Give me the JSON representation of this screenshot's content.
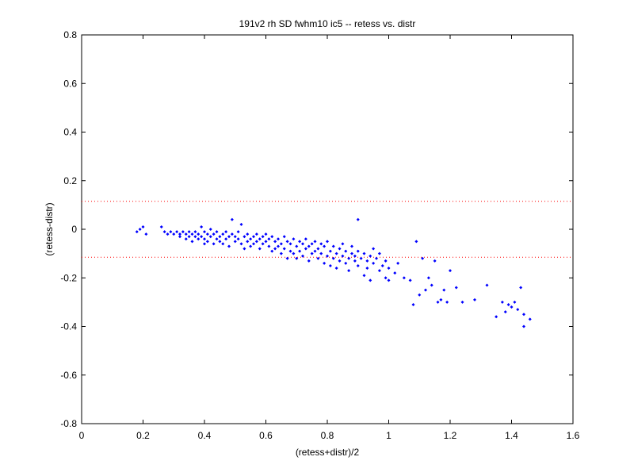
{
  "chart_data": {
    "type": "scatter",
    "title": "191v2 rh SD fwhm10 ic5 -- retess vs. distr",
    "xlabel": "(retess+distr)/2",
    "ylabel": "(retess-distr)",
    "xlim": [
      0,
      1.6
    ],
    "ylim": [
      -0.8,
      0.8
    ],
    "x_ticks": [
      0,
      0.2,
      0.4,
      0.6,
      0.8,
      1,
      1.2,
      1.4,
      1.6
    ],
    "x_tick_labels": [
      "0",
      "0.2",
      "0.4",
      "0.6",
      "0.8",
      "1",
      "1.2",
      "1.4",
      "1.6"
    ],
    "y_ticks": [
      -0.8,
      -0.6,
      -0.4,
      -0.2,
      0,
      0.2,
      0.4,
      0.6,
      0.8
    ],
    "y_tick_labels": [
      "-0.8",
      "-0.6",
      "-0.4",
      "-0.2",
      "0",
      "0.2",
      "0.4",
      "0.6",
      "0.8"
    ],
    "grid": false,
    "marker_color": "#0000ff",
    "reference_line_color": "#ff0000",
    "reference_lines_y": [
      0.115,
      -0.115
    ],
    "points": [
      [
        0.18,
        -0.01
      ],
      [
        0.19,
        0.0
      ],
      [
        0.2,
        0.01
      ],
      [
        0.21,
        -0.02
      ],
      [
        0.26,
        0.01
      ],
      [
        0.27,
        -0.01
      ],
      [
        0.28,
        -0.02
      ],
      [
        0.29,
        -0.01
      ],
      [
        0.3,
        -0.02
      ],
      [
        0.31,
        -0.01
      ],
      [
        0.32,
        -0.02
      ],
      [
        0.32,
        -0.03
      ],
      [
        0.33,
        -0.01
      ],
      [
        0.34,
        -0.02
      ],
      [
        0.34,
        -0.04
      ],
      [
        0.35,
        -0.01
      ],
      [
        0.35,
        -0.03
      ],
      [
        0.36,
        -0.02
      ],
      [
        0.36,
        -0.05
      ],
      [
        0.37,
        -0.01
      ],
      [
        0.37,
        -0.03
      ],
      [
        0.38,
        -0.02
      ],
      [
        0.38,
        -0.04
      ],
      [
        0.39,
        0.01
      ],
      [
        0.39,
        -0.03
      ],
      [
        0.4,
        -0.01
      ],
      [
        0.4,
        -0.04
      ],
      [
        0.4,
        -0.06
      ],
      [
        0.41,
        -0.02
      ],
      [
        0.41,
        -0.05
      ],
      [
        0.42,
        0.0
      ],
      [
        0.42,
        -0.03
      ],
      [
        0.43,
        -0.02
      ],
      [
        0.43,
        -0.06
      ],
      [
        0.44,
        -0.01
      ],
      [
        0.44,
        -0.04
      ],
      [
        0.45,
        -0.03
      ],
      [
        0.45,
        -0.05
      ],
      [
        0.46,
        -0.02
      ],
      [
        0.46,
        -0.06
      ],
      [
        0.47,
        -0.01
      ],
      [
        0.47,
        -0.04
      ],
      [
        0.48,
        -0.03
      ],
      [
        0.48,
        -0.07
      ],
      [
        0.49,
        0.04
      ],
      [
        0.49,
        -0.02
      ],
      [
        0.5,
        -0.03
      ],
      [
        0.5,
        -0.05
      ],
      [
        0.51,
        -0.01
      ],
      [
        0.51,
        -0.04
      ],
      [
        0.52,
        0.02
      ],
      [
        0.52,
        -0.06
      ],
      [
        0.53,
        -0.03
      ],
      [
        0.53,
        -0.08
      ],
      [
        0.54,
        -0.02
      ],
      [
        0.54,
        -0.05
      ],
      [
        0.55,
        -0.04
      ],
      [
        0.55,
        -0.07
      ],
      [
        0.56,
        -0.03
      ],
      [
        0.56,
        -0.06
      ],
      [
        0.57,
        -0.02
      ],
      [
        0.57,
        -0.05
      ],
      [
        0.58,
        -0.04
      ],
      [
        0.58,
        -0.08
      ],
      [
        0.59,
        -0.03
      ],
      [
        0.59,
        -0.06
      ],
      [
        0.6,
        -0.02
      ],
      [
        0.6,
        -0.05
      ],
      [
        0.61,
        -0.07
      ],
      [
        0.61,
        -0.04
      ],
      [
        0.62,
        -0.03
      ],
      [
        0.62,
        -0.09
      ],
      [
        0.63,
        -0.05
      ],
      [
        0.63,
        -0.08
      ],
      [
        0.64,
        -0.04
      ],
      [
        0.64,
        -0.07
      ],
      [
        0.65,
        -0.06
      ],
      [
        0.65,
        -0.1
      ],
      [
        0.66,
        -0.03
      ],
      [
        0.66,
        -0.08
      ],
      [
        0.67,
        -0.05
      ],
      [
        0.67,
        -0.12
      ],
      [
        0.68,
        -0.06
      ],
      [
        0.68,
        -0.09
      ],
      [
        0.69,
        -0.04
      ],
      [
        0.69,
        -0.1
      ],
      [
        0.7,
        -0.07
      ],
      [
        0.7,
        -0.12
      ],
      [
        0.71,
        -0.05
      ],
      [
        0.71,
        -0.09
      ],
      [
        0.72,
        -0.06
      ],
      [
        0.72,
        -0.11
      ],
      [
        0.73,
        -0.04
      ],
      [
        0.73,
        -0.08
      ],
      [
        0.74,
        -0.07
      ],
      [
        0.74,
        -0.13
      ],
      [
        0.75,
        -0.06
      ],
      [
        0.75,
        -0.1
      ],
      [
        0.76,
        -0.05
      ],
      [
        0.76,
        -0.09
      ],
      [
        0.77,
        -0.08
      ],
      [
        0.77,
        -0.12
      ],
      [
        0.78,
        -0.06
      ],
      [
        0.78,
        -0.1
      ],
      [
        0.79,
        -0.07
      ],
      [
        0.79,
        -0.14
      ],
      [
        0.8,
        -0.05
      ],
      [
        0.8,
        -0.11
      ],
      [
        0.81,
        -0.09
      ],
      [
        0.81,
        -0.15
      ],
      [
        0.82,
        -0.07
      ],
      [
        0.82,
        -0.12
      ],
      [
        0.83,
        -0.1
      ],
      [
        0.83,
        -0.16
      ],
      [
        0.84,
        -0.08
      ],
      [
        0.84,
        -0.13
      ],
      [
        0.85,
        -0.11
      ],
      [
        0.85,
        -0.06
      ],
      [
        0.86,
        -0.09
      ],
      [
        0.86,
        -0.14
      ],
      [
        0.87,
        -0.12
      ],
      [
        0.87,
        -0.17
      ],
      [
        0.88,
        -0.1
      ],
      [
        0.88,
        -0.07
      ],
      [
        0.89,
        -0.13
      ],
      [
        0.89,
        -0.11
      ],
      [
        0.9,
        0.04
      ],
      [
        0.9,
        -0.09
      ],
      [
        0.9,
        -0.15
      ],
      [
        0.91,
        -0.12
      ],
      [
        0.92,
        -0.1
      ],
      [
        0.92,
        -0.19
      ],
      [
        0.93,
        -0.13
      ],
      [
        0.93,
        -0.16
      ],
      [
        0.94,
        -0.11
      ],
      [
        0.94,
        -0.21
      ],
      [
        0.95,
        -0.14
      ],
      [
        0.95,
        -0.08
      ],
      [
        0.96,
        -0.12
      ],
      [
        0.97,
        -0.17
      ],
      [
        0.97,
        -0.1
      ],
      [
        0.98,
        -0.15
      ],
      [
        0.99,
        -0.2
      ],
      [
        0.99,
        -0.13
      ],
      [
        1.0,
        -0.16
      ],
      [
        1.0,
        -0.21
      ],
      [
        1.02,
        -0.18
      ],
      [
        1.03,
        -0.14
      ],
      [
        1.05,
        -0.2
      ],
      [
        1.07,
        -0.21
      ],
      [
        1.08,
        -0.31
      ],
      [
        1.09,
        -0.05
      ],
      [
        1.1,
        -0.27
      ],
      [
        1.11,
        -0.12
      ],
      [
        1.12,
        -0.25
      ],
      [
        1.13,
        -0.2
      ],
      [
        1.14,
        -0.23
      ],
      [
        1.15,
        -0.13
      ],
      [
        1.16,
        -0.3
      ],
      [
        1.17,
        -0.29
      ],
      [
        1.18,
        -0.25
      ],
      [
        1.19,
        -0.3
      ],
      [
        1.2,
        -0.17
      ],
      [
        1.22,
        -0.24
      ],
      [
        1.24,
        -0.3
      ],
      [
        1.28,
        -0.29
      ],
      [
        1.32,
        -0.23
      ],
      [
        1.35,
        -0.36
      ],
      [
        1.37,
        -0.3
      ],
      [
        1.38,
        -0.34
      ],
      [
        1.39,
        -0.31
      ],
      [
        1.4,
        -0.32
      ],
      [
        1.41,
        -0.3
      ],
      [
        1.42,
        -0.33
      ],
      [
        1.43,
        -0.24
      ],
      [
        1.44,
        -0.35
      ],
      [
        1.44,
        -0.4
      ],
      [
        1.46,
        -0.37
      ]
    ]
  }
}
